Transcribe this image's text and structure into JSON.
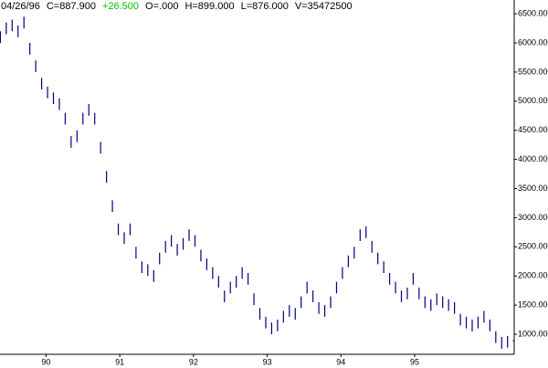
{
  "chart_data": {
    "type": "ohlc",
    "header": {
      "date": "04/26/96",
      "close": "C=887.900",
      "change": "+26.500",
      "open": "O=.000",
      "high": "H=899.000",
      "low": "L=876.000",
      "volume": "V=35472500"
    },
    "x": [
      89.38,
      89.46,
      89.54,
      89.62,
      89.7,
      89.78,
      89.86,
      89.94,
      90.02,
      90.1,
      90.18,
      90.26,
      90.34,
      90.42,
      90.5,
      90.58,
      90.66,
      90.74,
      90.82,
      90.9,
      90.98,
      91.06,
      91.14,
      91.22,
      91.3,
      91.38,
      91.46,
      91.54,
      91.62,
      91.7,
      91.78,
      91.86,
      91.94,
      92.02,
      92.1,
      92.18,
      92.26,
      92.34,
      92.42,
      92.5,
      92.58,
      92.66,
      92.74,
      92.82,
      92.9,
      92.98,
      93.06,
      93.14,
      93.22,
      93.3,
      93.38,
      93.46,
      93.54,
      93.62,
      93.7,
      93.78,
      93.86,
      93.94,
      94.02,
      94.1,
      94.18,
      94.26,
      94.34,
      94.42,
      94.5,
      94.58,
      94.66,
      94.74,
      94.82,
      94.9,
      94.98,
      95.06,
      95.14,
      95.22,
      95.3,
      95.38,
      95.46,
      95.54,
      95.62,
      95.7,
      95.78,
      95.86,
      95.94,
      96.02,
      96.1,
      96.18,
      96.26,
      96.34
    ],
    "series": [
      {
        "color": "#000080",
        "high": [
          6200,
          6350,
          6400,
          6300,
          6450,
          6000,
          5700,
          5400,
          5250,
          5150,
          5050,
          4800,
          4400,
          4500,
          4800,
          4950,
          4800,
          4300,
          3800,
          3300,
          2900,
          2750,
          2900,
          2500,
          2250,
          2200,
          2100,
          2400,
          2600,
          2700,
          2550,
          2650,
          2800,
          2700,
          2450,
          2300,
          2150,
          2000,
          1750,
          1900,
          2000,
          2150,
          2050,
          1700,
          1450,
          1300,
          1200,
          1250,
          1400,
          1500,
          1450,
          1650,
          1900,
          1750,
          1550,
          1500,
          1650,
          1900,
          2150,
          2350,
          2500,
          2800,
          2850,
          2600,
          2400,
          2250,
          2050,
          1900,
          1750,
          1800,
          2050,
          1800,
          1650,
          1600,
          1700,
          1650,
          1600,
          1550,
          1350,
          1300,
          1250,
          1300,
          1400,
          1250,
          1050,
          950,
          970,
          899
        ],
        "low": [
          6000,
          6150,
          6200,
          6100,
          6250,
          5800,
          5500,
          5200,
          5050,
          4950,
          4850,
          4600,
          4200,
          4300,
          4600,
          4750,
          4600,
          4100,
          3600,
          3100,
          2700,
          2550,
          2700,
          2300,
          2050,
          2000,
          1900,
          2200,
          2400,
          2500,
          2350,
          2450,
          2600,
          2500,
          2250,
          2100,
          1950,
          1800,
          1550,
          1700,
          1800,
          1950,
          1850,
          1500,
          1250,
          1100,
          1000,
          1050,
          1200,
          1300,
          1250,
          1450,
          1700,
          1550,
          1350,
          1300,
          1450,
          1700,
          1950,
          2150,
          2300,
          2600,
          2650,
          2400,
          2200,
          2050,
          1850,
          1700,
          1550,
          1600,
          1850,
          1600,
          1450,
          1400,
          1500,
          1450,
          1400,
          1350,
          1150,
          1100,
          1050,
          1100,
          1200,
          1050,
          850,
          750,
          770,
          876
        ]
      }
    ],
    "xlim": [
      89.4,
      96.35
    ],
    "xticks": [
      90,
      91,
      92,
      93,
      94,
      95
    ],
    "ylim": [
      655,
      6737
    ],
    "yticks": [
      {
        "value": 1000,
        "label": "1000.000"
      },
      {
        "value": 1500,
        "label": "1500.000"
      },
      {
        "value": 2000,
        "label": "2000.000"
      },
      {
        "value": 2500,
        "label": "2500.000"
      },
      {
        "value": 3000,
        "label": "3000.000"
      },
      {
        "value": 3500,
        "label": "3500.000"
      },
      {
        "value": 4000,
        "label": "4000.000"
      },
      {
        "value": 4500,
        "label": "4500.000"
      },
      {
        "value": 5000,
        "label": "5000.000"
      },
      {
        "value": 5500,
        "label": "5500.000"
      },
      {
        "value": 6000,
        "label": "6000.000"
      },
      {
        "value": 6500,
        "label": "6500.000"
      }
    ]
  }
}
